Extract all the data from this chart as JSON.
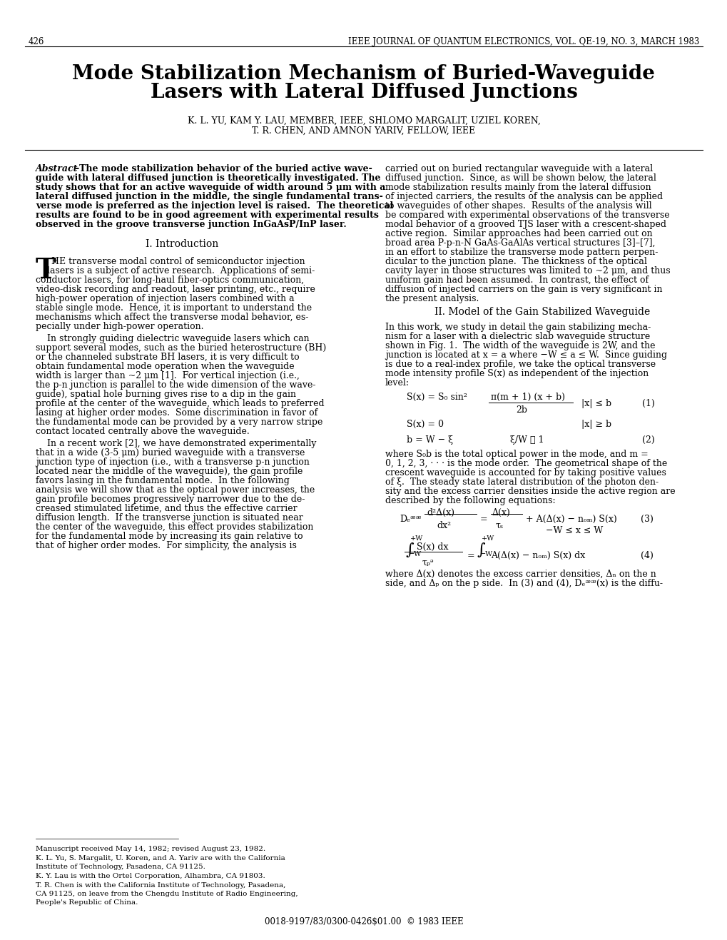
{
  "background_color": "#ffffff",
  "page_number": "426",
  "journal_header": "IEEE JOURNAL OF QUANTUM ELECTRONICS, VOL. QE-19, NO. 3, MARCH 1983",
  "title_line1": "Mode Stabilization Mechanism of Buried-Waveguide",
  "title_line2": "Lasers with Lateral Diffused Junctions",
  "authors_line1": "K. L. YU, KAM Y. LAU, MEMBER, IEEE, SHLOMO MARGALIT, UZIEL KOREN,",
  "authors_line2": "T. R. CHEN, AND AMNON YARIV, FELLOW, IEEE",
  "copyright": "0018-9197/83/0300-0426$01.00  © 1983 IEEE"
}
